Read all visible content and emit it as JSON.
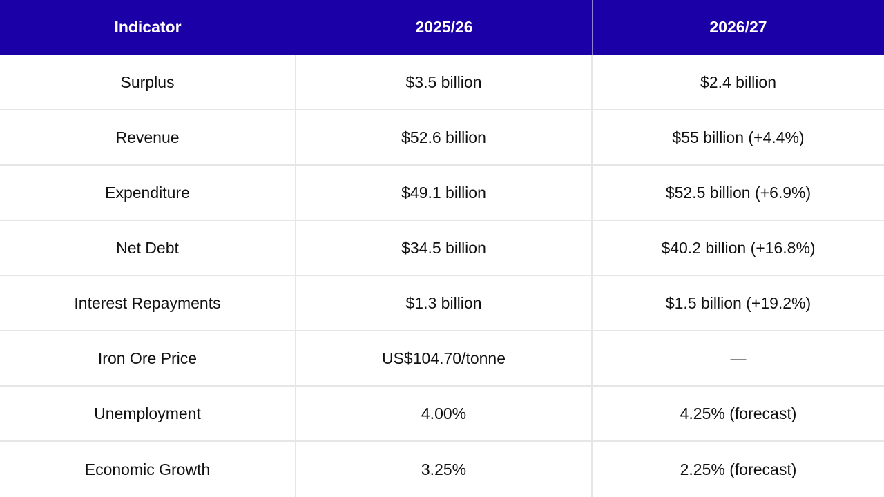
{
  "table": {
    "headers": [
      "Indicator",
      "2025/26",
      "2026/27"
    ],
    "rows": [
      [
        "Surplus",
        "$3.5 billion",
        "$2.4 billion"
      ],
      [
        "Revenue",
        "$52.6 billion",
        "$55 billion (+4.4%)"
      ],
      [
        "Expenditure",
        "$49.1 billion",
        "$52.5 billion (+6.9%)"
      ],
      [
        "Net Debt",
        "$34.5 billion",
        "$40.2 billion (+16.8%)"
      ],
      [
        "Interest Repayments",
        "$1.3 billion",
        "$1.5 billion (+19.2%)"
      ],
      [
        "Iron Ore Price",
        "US$104.70/tonne",
        "—"
      ],
      [
        "Unemployment",
        "4.00%",
        "4.25% (forecast)"
      ],
      [
        "Economic Growth",
        "3.25%",
        "2.25% (forecast)"
      ]
    ],
    "colors": {
      "header_bg": "#1b00a8",
      "header_text": "#ffffff",
      "grid_line": "#e6e6e6",
      "body_text": "#111111"
    }
  }
}
